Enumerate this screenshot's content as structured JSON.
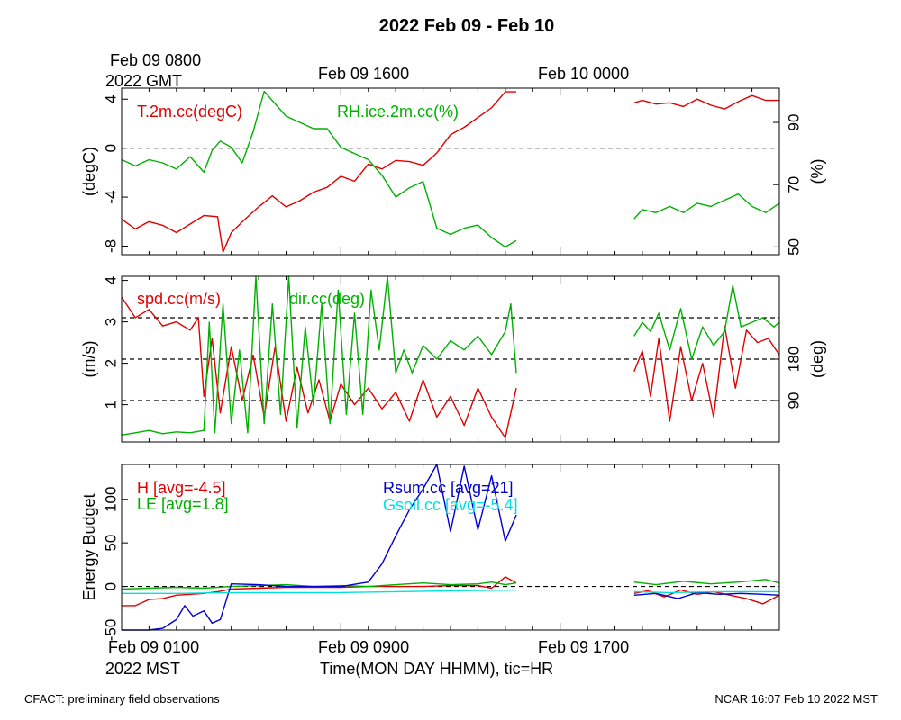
{
  "title": "2022 Feb 09 - Feb 10",
  "top_axis": {
    "labels": [
      "Feb 09 0800",
      "Feb 09 1600",
      "Feb 10 0000"
    ],
    "tz_label": "2022 GMT"
  },
  "bottom_axis": {
    "labels": [
      "Feb 09 0100",
      "Feb 09 0900",
      "Feb 09 1700"
    ],
    "tz_label": "2022 MST",
    "xlabel": "Time(MON DAY HHMM), tic=HR"
  },
  "footer": {
    "left": "CFACT: preliminary field observations",
    "right": "NCAR 16:07 Feb 10 2022 MST"
  },
  "colors": {
    "red": "#e00000",
    "green": "#00b000",
    "blue": "#0000d0",
    "cyan": "#00e0e0"
  },
  "chart_data": [
    {
      "type": "line",
      "id": "temp-rh",
      "x_unit": "hours since Feb 09 0100 MST",
      "xlim": [
        0,
        24
      ],
      "ylabel": "(degC)",
      "ylim": [
        -8.7,
        4.9
      ],
      "yticks": [
        "4",
        "0",
        "-4",
        "-8"
      ],
      "ylabel_right": "(%)",
      "ylim_right": [
        47.5,
        101
      ],
      "yticks_right": [
        "90",
        "70",
        "50"
      ],
      "ref_lines": [
        0
      ],
      "series": [
        {
          "name": "T.2m.cc(degC)",
          "axis": "left",
          "color": "red",
          "segments": [
            {
              "x": [
                0,
                0.5,
                1,
                1.5,
                2,
                2.5,
                3,
                3.5,
                3.7,
                4,
                4.5,
                5,
                5.5,
                6,
                6.5,
                7,
                7.5,
                8,
                8.5,
                9,
                9.5,
                10,
                10.5,
                11,
                11.5,
                12,
                12.5,
                13,
                13.5,
                14,
                14.4
              ],
              "y": [
                -5.8,
                -6.6,
                -6.0,
                -6.3,
                -6.9,
                -6.2,
                -5.5,
                -5.6,
                -8.5,
                -6.9,
                -5.8,
                -4.8,
                -3.9,
                -4.8,
                -4.3,
                -3.6,
                -3.2,
                -2.3,
                -2.7,
                -1.3,
                -1.7,
                -1.0,
                -1.1,
                -1.4,
                -0.4,
                1.1,
                1.7,
                2.5,
                3.3,
                4.6,
                4.6
              ]
            },
            {
              "x": [
                18.7,
                19,
                19.5,
                20,
                20.5,
                21,
                21.5,
                22,
                22.5,
                23,
                23.5,
                24
              ],
              "y": [
                3.7,
                3.9,
                3.6,
                3.7,
                3.4,
                4.0,
                3.5,
                3.2,
                3.8,
                4.3,
                3.9,
                3.9
              ]
            }
          ]
        },
        {
          "name": "RH.ice.2m.cc(%)",
          "axis": "right",
          "color": "green",
          "segments": [
            {
              "x": [
                0,
                0.5,
                1,
                1.5,
                2,
                2.5,
                3,
                3.3,
                3.6,
                4,
                4.4,
                4.8,
                5.2,
                5.6,
                6,
                6.5,
                7,
                7.5,
                8,
                8.5,
                9,
                9.5,
                10,
                10.5,
                11,
                11.5,
                12,
                12.5,
                13,
                13.5,
                14,
                14.4
              ],
              "y": [
                78,
                76,
                78,
                77,
                75,
                79,
                74,
                81,
                84,
                82,
                77,
                87,
                100,
                96,
                92,
                90,
                88,
                88,
                82,
                80,
                78,
                73,
                66,
                69,
                71,
                56,
                54,
                56,
                57,
                53,
                50,
                52
              ]
            },
            {
              "x": [
                18.7,
                19,
                19.5,
                20,
                20.5,
                21,
                21.5,
                22,
                22.5,
                23,
                23.5,
                24
              ],
              "y": [
                59,
                62,
                61,
                63,
                61,
                64,
                63,
                65,
                67,
                63,
                61,
                64
              ]
            }
          ]
        }
      ]
    },
    {
      "type": "line",
      "id": "wind",
      "x_unit": "hours since Feb 09 0100 MST",
      "xlim": [
        0,
        24
      ],
      "ylabel": "(m/s)",
      "ylim": [
        0.1,
        4.1
      ],
      "yticks": [
        "4",
        "3",
        "2",
        "1"
      ],
      "ylabel_right": "(deg)",
      "ylim_right": [
        0,
        360
      ],
      "yticks_right": [
        "180",
        "90"
      ],
      "ref_lines_right": [
        90,
        180,
        270
      ],
      "series": [
        {
          "name": "spd.cc(m/s)",
          "axis": "left",
          "color": "red",
          "segments": [
            {
              "x": [
                0,
                0.5,
                1,
                1.5,
                2,
                2.5,
                2.8,
                3,
                3.3,
                3.6,
                4,
                4.4,
                4.8,
                5.2,
                5.6,
                6,
                6.4,
                6.8,
                7.2,
                7.6,
                8,
                8.5,
                9,
                9.5,
                10,
                10.5,
                11,
                11.5,
                12,
                12.5,
                13,
                13.5,
                14,
                14.4
              ],
              "y": [
                3.6,
                3.1,
                3.3,
                2.9,
                3.0,
                2.8,
                3.1,
                1.2,
                2.6,
                0.8,
                2.4,
                1.1,
                2.2,
                0.7,
                2.4,
                0.6,
                1.9,
                0.8,
                1.6,
                0.6,
                1.5,
                1.0,
                1.4,
                0.9,
                1.3,
                0.6,
                1.6,
                0.7,
                1.2,
                0.5,
                1.4,
                0.7,
                0.2,
                1.4
              ]
            },
            {
              "x": [
                18.7,
                19,
                19.3,
                19.6,
                20,
                20.4,
                20.8,
                21.2,
                21.6,
                22,
                22.4,
                22.8,
                23.2,
                23.6,
                24
              ],
              "y": [
                1.8,
                2.3,
                1.2,
                2.6,
                0.6,
                2.4,
                1.1,
                2.0,
                0.7,
                2.9,
                1.4,
                2.8,
                2.5,
                2.6,
                2.2
              ]
            }
          ]
        },
        {
          "name": "dir.cc(deg)",
          "axis": "right",
          "color": "green",
          "segments": [
            {
              "x": [
                0,
                0.5,
                1,
                1.5,
                2,
                2.5,
                3,
                3.2,
                3.4,
                3.7,
                4,
                4.3,
                4.6,
                4.9,
                5.2,
                5.5,
                5.8,
                6.1,
                6.4,
                6.7,
                7,
                7.3,
                7.6,
                7.9,
                8.2,
                8.5,
                8.8,
                9.1,
                9.4,
                9.7,
                10,
                10.3,
                10.6,
                11,
                11.5,
                12,
                12.5,
                13,
                13.5,
                14,
                14.2,
                14.4
              ],
              "y": [
                15,
                20,
                25,
                18,
                22,
                20,
                25,
                260,
                20,
                300,
                40,
                200,
                20,
                360,
                40,
                300,
                60,
                360,
                30,
                250,
                80,
                300,
                40,
                330,
                60,
                280,
                60,
                330,
                200,
                360,
                150,
                200,
                150,
                210,
                180,
                220,
                200,
                230,
                190,
                240,
                300,
                150
              ]
            },
            {
              "x": [
                18.7,
                19,
                19.3,
                19.6,
                20,
                20.4,
                20.8,
                21.2,
                21.6,
                22,
                22.3,
                22.6,
                23,
                23.4,
                23.8,
                24
              ],
              "y": [
                230,
                260,
                240,
                280,
                200,
                290,
                180,
                250,
                210,
                240,
                340,
                250,
                260,
                270,
                250,
                260
              ]
            }
          ]
        }
      ]
    },
    {
      "type": "line",
      "id": "energy",
      "x_unit": "hours since Feb 09 0100 MST",
      "xlim": [
        0,
        24
      ],
      "ylabel": "Energy Budget",
      "ylim": [
        -50,
        140
      ],
      "yticks": [
        "100",
        "50",
        "0",
        "-50"
      ],
      "ref_lines": [
        0
      ],
      "series": [
        {
          "name": "H",
          "legend": "H [avg=-4.5]",
          "color": "red",
          "segments": [
            {
              "x": [
                0,
                0.5,
                1,
                1.5,
                2,
                2.5,
                3,
                3.5,
                4,
                5,
                6,
                7,
                8,
                9,
                10,
                11,
                12,
                13,
                13.5,
                14,
                14.4
              ],
              "y": [
                -22,
                -22,
                -15,
                -14,
                -10,
                -9,
                -8,
                -6,
                -3,
                -2,
                -1,
                -1,
                -1,
                0,
                0,
                0,
                1,
                1,
                -2,
                11,
                4
              ]
            },
            {
              "x": [
                18.7,
                19.2,
                19.8,
                20.4,
                21,
                21.6,
                22.2,
                22.8,
                23.4,
                24
              ],
              "y": [
                -8,
                -5,
                -12,
                -4,
                -9,
                -6,
                -10,
                -14,
                -20,
                -10
              ]
            }
          ]
        },
        {
          "name": "LE",
          "legend": "LE [avg=1.8]",
          "color": "green",
          "segments": [
            {
              "x": [
                0,
                1,
                2,
                3,
                4,
                5,
                6,
                7,
                8,
                9,
                10,
                11,
                12,
                13,
                13.5,
                14,
                14.4
              ],
              "y": [
                -3,
                -2,
                -1,
                -2,
                0,
                1,
                2,
                0,
                1,
                0,
                2,
                4,
                2,
                3,
                5,
                2,
                4
              ]
            },
            {
              "x": [
                18.7,
                19.5,
                20.5,
                21.5,
                22.5,
                23.5,
                24
              ],
              "y": [
                5,
                2,
                6,
                3,
                5,
                8,
                4
              ]
            }
          ]
        },
        {
          "name": "Rsum.cc",
          "legend": "Rsum.cc [avg=21]",
          "color": "blue",
          "segments": [
            {
              "x": [
                0,
                1,
                1.5,
                2,
                2.3,
                2.6,
                3,
                3.3,
                3.6,
                4,
                5,
                6,
                7,
                8,
                9,
                9.5,
                10,
                10.5,
                11,
                11.5,
                12,
                12.5,
                13,
                13.5,
                14,
                14.4
              ],
              "y": [
                -50,
                -50,
                -48,
                -38,
                -22,
                -34,
                -28,
                -42,
                -38,
                3,
                2,
                0,
                0,
                0,
                5,
                26,
                58,
                88,
                112,
                140,
                63,
                138,
                65,
                127,
                52,
                82
              ]
            },
            {
              "x": [
                18.7,
                19.5,
                20.3,
                21,
                21.8,
                22.6,
                23.4,
                24
              ],
              "y": [
                -10,
                -8,
                -14,
                -7,
                -9,
                -8,
                -9,
                -10
              ]
            }
          ]
        },
        {
          "name": "Gsoil.cc",
          "legend": "Gsoil.cc [avg=-5.4]",
          "color": "cyan",
          "segments": [
            {
              "x": [
                0,
                2,
                4,
                6,
                8,
                10,
                12,
                14.4
              ],
              "y": [
                -8,
                -8,
                -7,
                -7,
                -7,
                -6,
                -5,
                -4
              ]
            },
            {
              "x": [
                18.7,
                20,
                22,
                24
              ],
              "y": [
                -6,
                -7,
                -6,
                -6
              ]
            }
          ]
        }
      ]
    }
  ]
}
